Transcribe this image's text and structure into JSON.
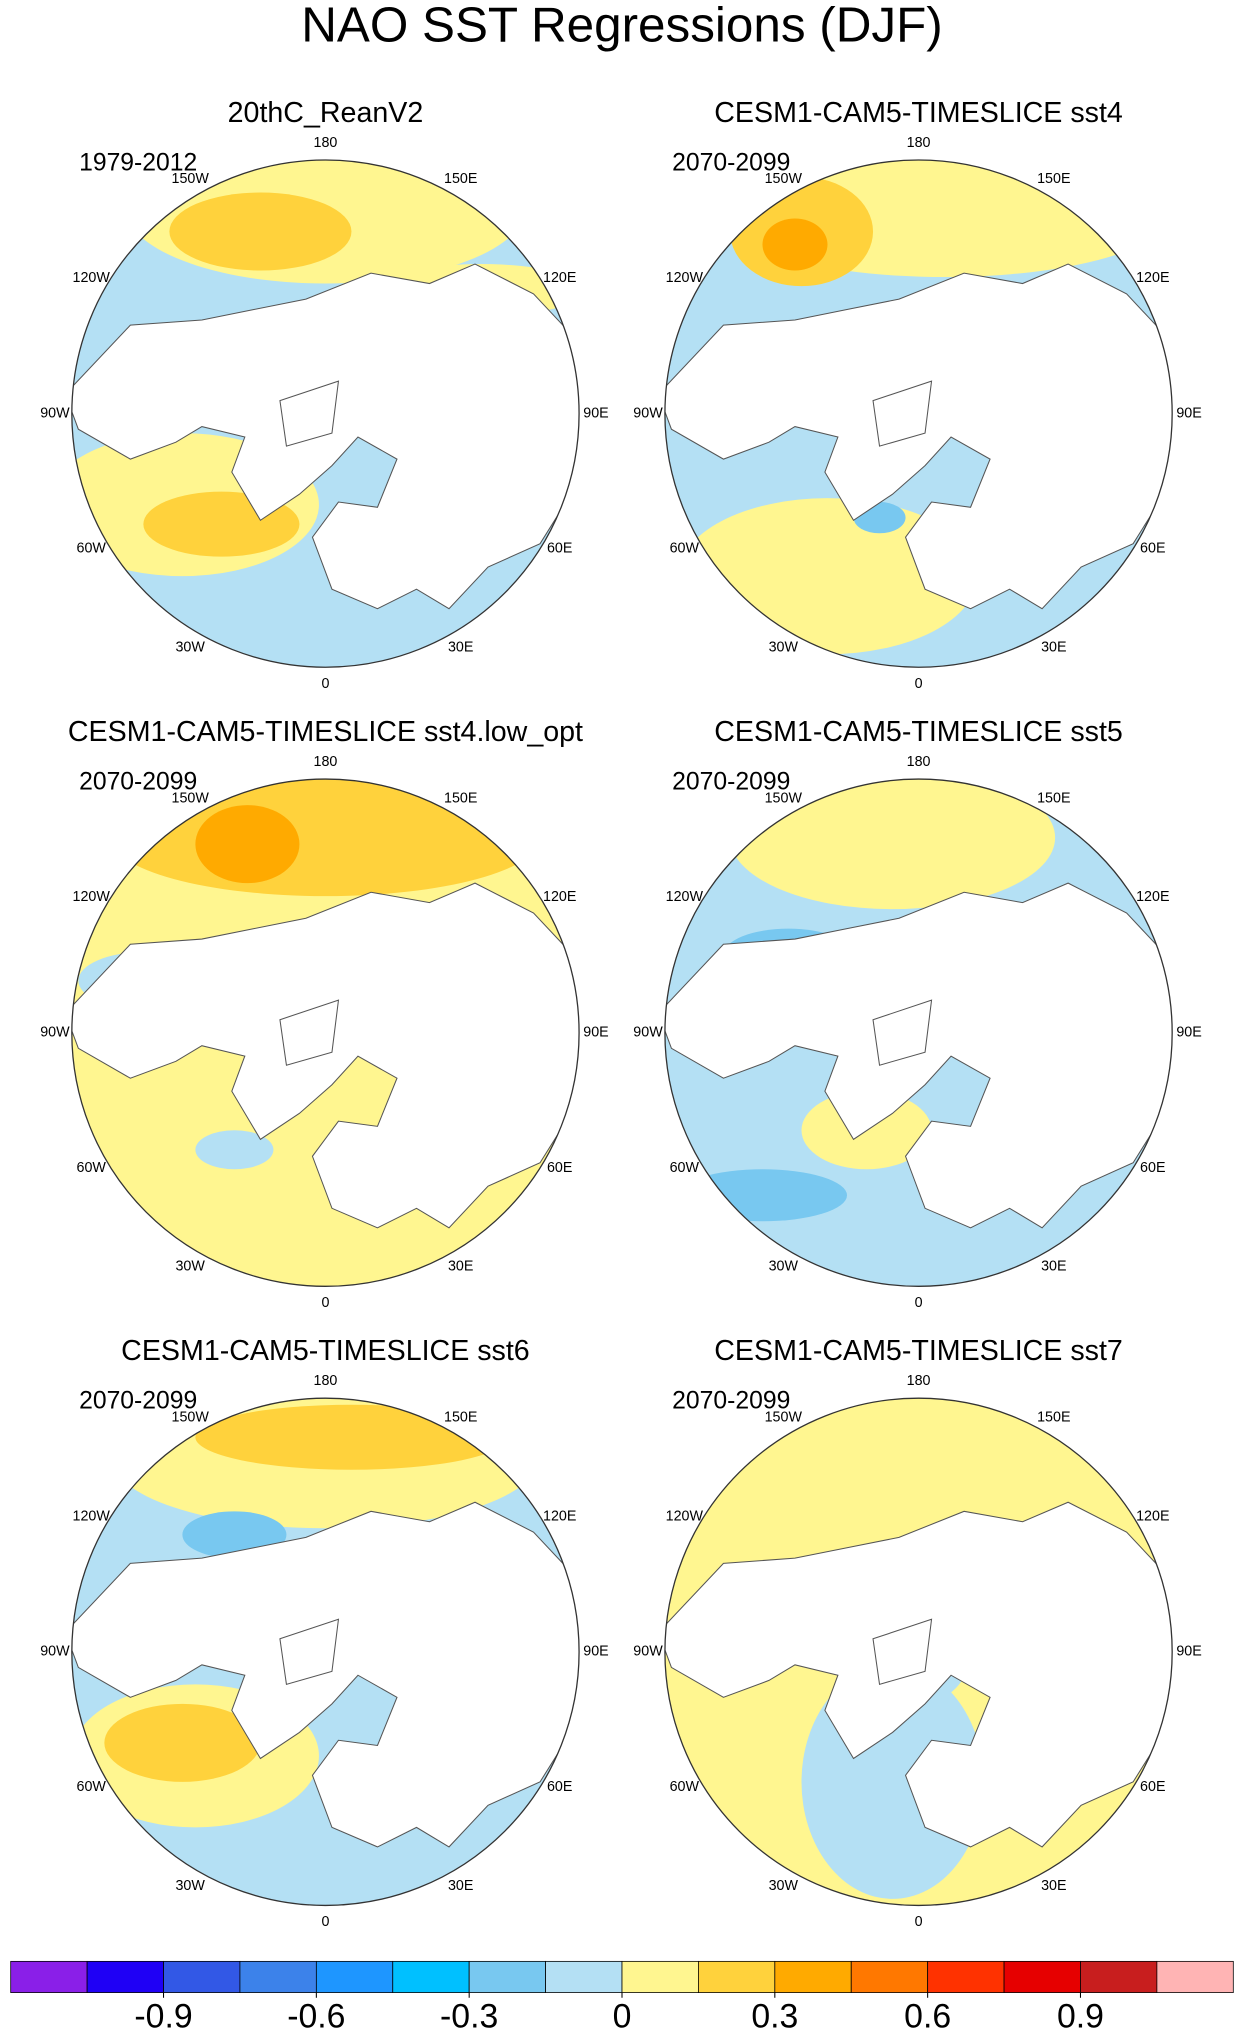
{
  "title": "NAO SST Regressions (DJF)",
  "longitude_labels": [
    "180",
    "150E",
    "120E",
    "90E",
    "60E",
    "30E",
    "0",
    "30W",
    "60W",
    "90W",
    "120W",
    "150W"
  ],
  "panels": [
    {
      "title": "20thC_ReanV2",
      "period": "1979-2012"
    },
    {
      "title": "CESM1-CAM5-TIMESLICE sst4",
      "period": "2070-2099"
    },
    {
      "title": "CESM1-CAM5-TIMESLICE sst4.low_opt",
      "period": "2070-2099"
    },
    {
      "title": "CESM1-CAM5-TIMESLICE sst5",
      "period": "2070-2099"
    },
    {
      "title": "CESM1-CAM5-TIMESLICE sst6",
      "period": "2070-2099"
    },
    {
      "title": "CESM1-CAM5-TIMESLICE sst7",
      "period": "2070-2099"
    }
  ],
  "colorbar": {
    "range": [
      -1.2,
      1.2
    ],
    "colors": [
      "#8a1fe8",
      "#1f00f5",
      "#3258e6",
      "#3c82ea",
      "#1e96ff",
      "#00c0ff",
      "#78c8f0",
      "#b4e0f4",
      "#fff690",
      "#ffd23c",
      "#ffaa00",
      "#ff7800",
      "#ff3200",
      "#e60000",
      "#c81e1e",
      "#ffb4b4"
    ],
    "ticks": [
      -0.9,
      -0.6,
      -0.3,
      0,
      0.3,
      0.6,
      0.9
    ]
  }
}
